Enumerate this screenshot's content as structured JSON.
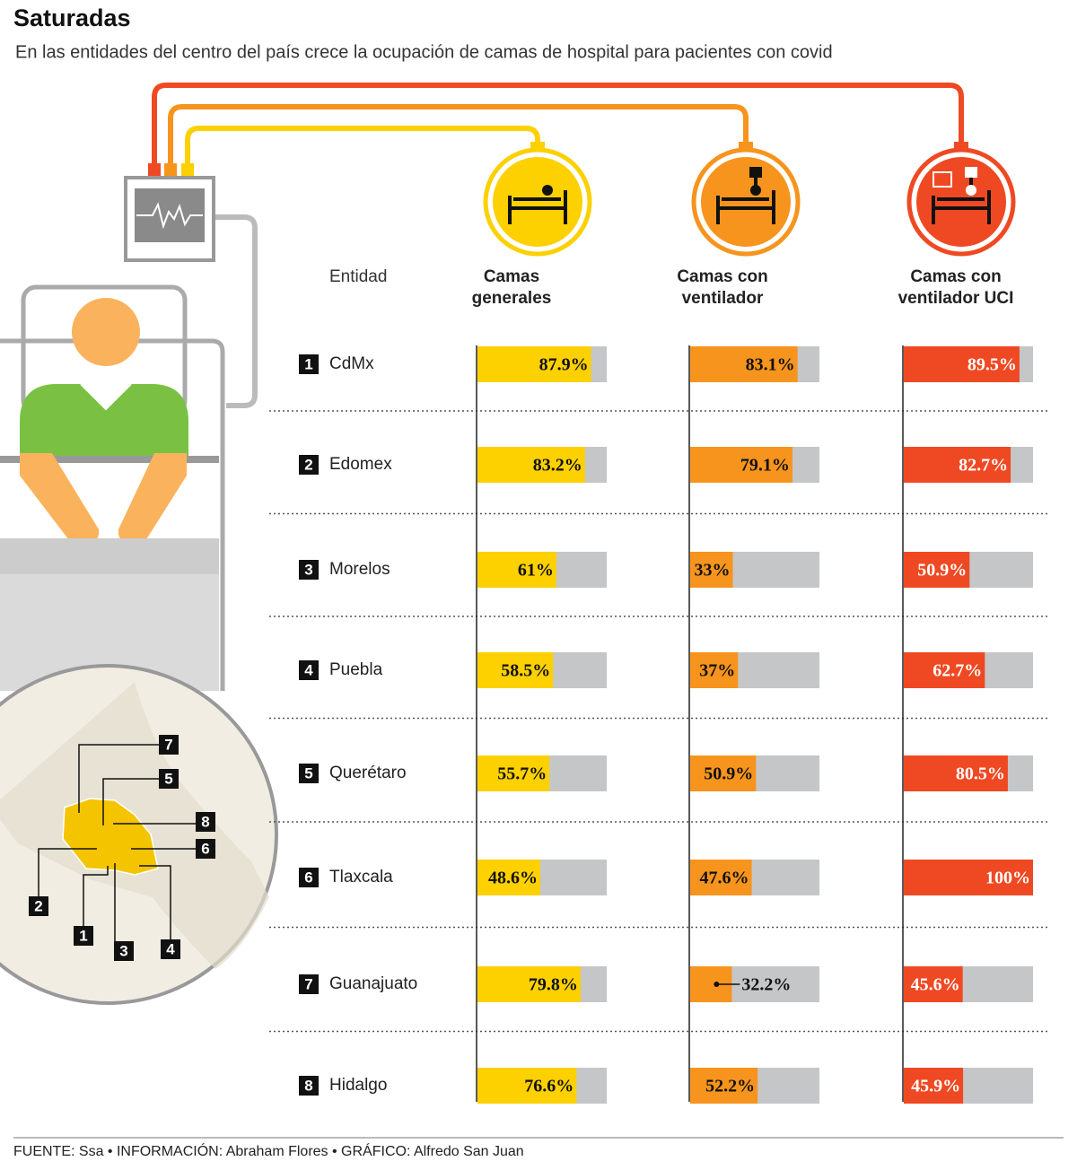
{
  "chart_data": {
    "type": "bar",
    "title": "Saturadas",
    "subtitle": "En las entidades del centro del país crece la ocupación de camas de hospital para pacientes con covid",
    "category_header": "Entidad",
    "ranks": [
      1,
      2,
      3,
      4,
      5,
      6,
      7,
      8
    ],
    "categories": [
      "CdMx",
      "Edomex",
      "Morelos",
      "Puebla",
      "Querétaro",
      "Tlaxcala",
      "Guanajuato",
      "Hidalgo"
    ],
    "xlim": [
      0,
      100
    ],
    "track_color": "#c5c6c8",
    "series": [
      {
        "name": "Camas generales",
        "color": "#fdd000",
        "values": [
          87.9,
          83.2,
          61,
          58.5,
          55.7,
          48.6,
          79.8,
          76.6
        ],
        "value_labels": [
          "87.9%",
          "83.2%",
          "61%",
          "58.5%",
          "55.7%",
          "48.6%",
          "79.8%",
          "76.6%"
        ]
      },
      {
        "name": "Camas con ventilador",
        "color": "#f7941d",
        "values": [
          83.1,
          79.1,
          33,
          37,
          50.9,
          47.6,
          32.2,
          52.2
        ],
        "value_labels": [
          "83.1%",
          "79.1%",
          "33%",
          "37%",
          "50.9%",
          "47.6%",
          "32.2%",
          "52.2%"
        ]
      },
      {
        "name": "Camas con ventilador UCI",
        "color": "#ef4923",
        "values": [
          89.5,
          82.7,
          50.9,
          62.7,
          80.5,
          100,
          45.6,
          45.9
        ],
        "value_labels": [
          "89.5%",
          "82.7%",
          "50.9%",
          "62.7%",
          "80.5%",
          "100%",
          "45.6%",
          "45.9%"
        ]
      }
    ],
    "source": "FUENTE: Ssa • INFORMACIÓN: Abraham Flores • GRÁFICO: Alfredo San Juan"
  }
}
